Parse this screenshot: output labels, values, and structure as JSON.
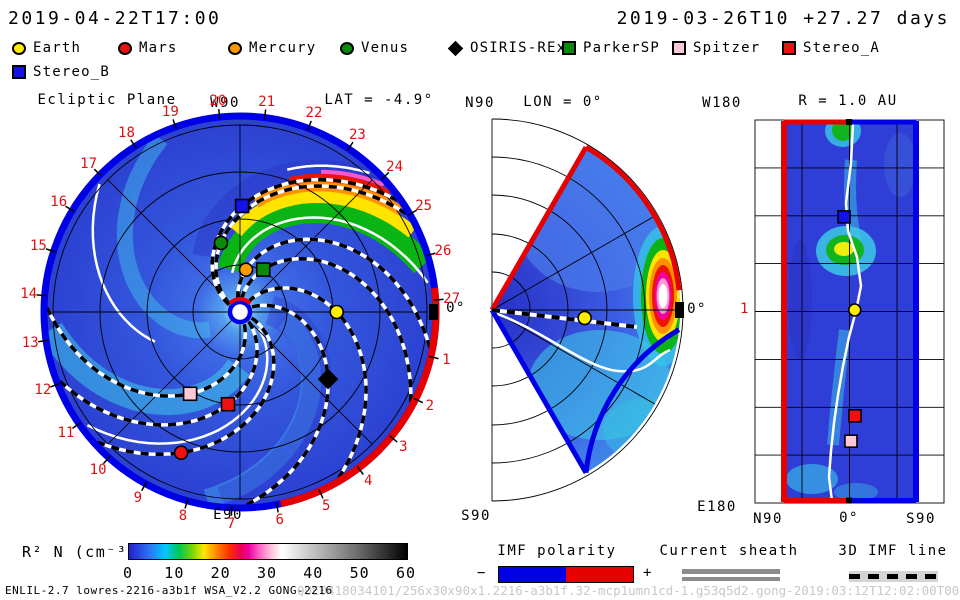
{
  "header": {
    "datetime_current": "2019-04-22T17:00",
    "datetime_start": "2019-03-26T10 +27.27 days"
  },
  "legend": {
    "items": [
      {
        "label": "Earth",
        "shape": "circle",
        "color": "#ffee00"
      },
      {
        "label": "Mars",
        "shape": "circle",
        "color": "#ee1111"
      },
      {
        "label": "Mercury",
        "shape": "circle",
        "color": "#ff9900"
      },
      {
        "label": "Venus",
        "shape": "circle",
        "color": "#0a8a0a"
      },
      {
        "label": "OSIRIS-REx",
        "shape": "diamond",
        "color": "#000000"
      },
      {
        "label": "ParkerSP",
        "shape": "square",
        "color": "#0a8a0a"
      },
      {
        "label": "Spitzer",
        "shape": "square",
        "color": "#ffc8d8"
      },
      {
        "label": "Stereo_A",
        "shape": "square",
        "color": "#ee1111"
      },
      {
        "label": "Stereo_B",
        "shape": "square",
        "color": "#1313e6"
      }
    ]
  },
  "panels": {
    "ecliptic": {
      "title": "Ecliptic Plane",
      "top_label": "W90",
      "bottom_label": "E90",
      "lat_label": "LAT = -4.9°",
      "zero_label": "0°",
      "rotation_period_days": 27.27,
      "day_ticks": [
        1,
        2,
        3,
        4,
        5,
        6,
        7,
        8,
        9,
        10,
        11,
        12,
        13,
        14,
        15,
        16,
        17,
        18,
        19,
        20,
        21,
        22,
        23,
        24,
        25,
        26,
        27
      ]
    },
    "meridional": {
      "north_label": "N90",
      "title": "LON = 0°",
      "south_label": "S90",
      "zero_label": "0°"
    },
    "radial_map": {
      "top_left_label": "W180",
      "title": "R = 1.0 AU",
      "bottom_left_label": "E180",
      "r_tick": "1",
      "x_ticks": [
        "N90",
        "0°",
        "S90"
      ]
    }
  },
  "markers": [
    {
      "name": "Earth",
      "shape": "circle",
      "color": "#ffee00",
      "ecliptic": {
        "angle_deg": 0,
        "r_au": 1.04
      },
      "meridional": {
        "r_au": 1.0,
        "lat_deg": -4.9
      },
      "radial": {
        "lat_deg": -5,
        "lon_deg": 0
      }
    },
    {
      "name": "Mars",
      "shape": "circle",
      "color": "#ee1111",
      "ecliptic": {
        "angle_deg": -112.7,
        "r_au": 1.64
      }
    },
    {
      "name": "Mercury",
      "shape": "circle",
      "color": "#ff9900",
      "ecliptic": {
        "angle_deg": 81.9,
        "r_au": 0.46
      }
    },
    {
      "name": "Venus",
      "shape": "circle",
      "color": "#0a8a0a",
      "ecliptic": {
        "angle_deg": 105.4,
        "r_au": 0.77
      }
    },
    {
      "name": "OSIRIS-REx",
      "shape": "diamond",
      "color": "#000000",
      "ecliptic": {
        "angle_deg": -37.3,
        "r_au": 1.19
      }
    },
    {
      "name": "ParkerSP",
      "shape": "square",
      "color": "#0a8a0a",
      "ecliptic": {
        "angle_deg": 61.3,
        "r_au": 0.52
      }
    },
    {
      "name": "Spitzer",
      "shape": "square",
      "color": "#ffc8d8",
      "ecliptic": {
        "angle_deg": -121.4,
        "r_au": 1.03
      },
      "radial": {
        "lat_deg": -1.4,
        "lon_deg": -124
      }
    },
    {
      "name": "Stereo_A",
      "shape": "square",
      "color": "#ee1111",
      "ecliptic": {
        "angle_deg": -97.4,
        "r_au": 1.0
      },
      "radial": {
        "lat_deg": -5.2,
        "lon_deg": -100
      }
    },
    {
      "name": "Stereo_B",
      "shape": "square",
      "color": "#1313e6",
      "ecliptic": {
        "angle_deg": 88.9,
        "r_au": 1.14
      },
      "radial": {
        "lat_deg": 5.2,
        "lon_deg": 88
      }
    }
  ],
  "colorbar": {
    "label": "R² N (cm⁻³)",
    "ticks": [
      0,
      10,
      20,
      30,
      40,
      50,
      60
    ],
    "stops": [
      {
        "p": 0,
        "c": "#2020cc"
      },
      {
        "p": 7,
        "c": "#2f6ff0"
      },
      {
        "p": 13,
        "c": "#00c8ff"
      },
      {
        "p": 18,
        "c": "#00c850"
      },
      {
        "p": 23,
        "c": "#7fd800"
      },
      {
        "p": 27,
        "c": "#ffe800"
      },
      {
        "p": 31,
        "c": "#ff9000"
      },
      {
        "p": 36,
        "c": "#ff3000"
      },
      {
        "p": 40,
        "c": "#ee0050"
      },
      {
        "p": 43,
        "c": "#f000a0"
      },
      {
        "p": 47,
        "c": "#ff64c8"
      },
      {
        "p": 51,
        "c": "#ffc0dc"
      },
      {
        "p": 55,
        "c": "#ffffff"
      },
      {
        "p": 65,
        "c": "#c8c8c8"
      },
      {
        "p": 82,
        "c": "#6e6e6e"
      },
      {
        "p": 100,
        "c": "#000000"
      }
    ]
  },
  "legends_bottom": {
    "imf": {
      "title": "IMF polarity",
      "minus": "−",
      "plus": "+",
      "neg_color": "#0000e6",
      "pos_color": "#e60000"
    },
    "sheath": {
      "title": "Current sheath"
    },
    "imf_line": {
      "title": "3D IMF line"
    }
  },
  "footer": {
    "model_info": "ENLIL-2.7 lowres-2216-a3b1f WSA_V2.2 GONG-2216",
    "watermark": "QUE0418034101/256x30x90x1.2216-a3b1f.32-mcp1umn1cd-1.g53q5d2.gong-2019:03:12T12:02:00T00   2019-04-18"
  },
  "chart_data": [
    {
      "type": "heatmap",
      "title": "Ecliptic Plane",
      "projection": "polar cut viewed from solar north, Sun at center",
      "quantity": "R² N (cm⁻³)",
      "color_range": [
        0,
        60
      ],
      "radial_extent_au": 2.1,
      "grid_circles_au": [
        0.5,
        1.0,
        1.5,
        2.0
      ],
      "plane_lat_deg": -4.9,
      "angular_ticks": "day-of-rotation labels 1-27 around rim, 27.27-day period, 0° at Earth direction",
      "rim_polarity": {
        "positive_red_arc_deg": [
          -78,
          7
        ],
        "negative_blue_arc": "remainder of rim"
      },
      "features": [
        "Parker-spiral 3D IMF lines (black/white dashed) threading each planet/spacecraft",
        "high-density CME spiral arm colored green→yellow→orange→red reaching the outer boundary near 0°-30°",
        "white solid current-sheet spiral lines",
        "background slow solar wind in blues/cyans (≈2-10 cm⁻³)"
      ]
    },
    {
      "type": "heatmap",
      "title": "Meridional cut LON = 0°",
      "projection": "polar half-plane, N90 at top, S90 at bottom, Sun at apex",
      "data_wedge_lat_deg": [
        -60,
        60
      ],
      "radial_extent_au": 2.1,
      "quantity": "R² N (cm⁻³)",
      "features": [
        "Earth (yellow) at 1 AU just south of equator (LAT -4.9°) with dashed IMF line from Sun",
        "bright CME density front at outer boundary near equator: white core (>35) ringed by pink/magenta/red/yellow/green",
        "white current-sheet line dipping southward of the equator",
        "upper wedge boundary red (+ polarity), lower boundary blue (−)"
      ]
    },
    {
      "type": "heatmap",
      "title": "R = 1.0 AU latitude-longitude map",
      "x_axis": {
        "label": "latitude",
        "ticks": [
          "N90",
          "0°",
          "S90"
        ]
      },
      "y_axis": {
        "label": "longitude",
        "top": "W180",
        "bottom": "E180",
        "equator_tick": "1"
      },
      "quantity": "R² N (cm⁻³)",
      "features": [
        "white current-sheet trace meandering near 0° latitude over full longitude range",
        "enhanced density blobs (green/yellow ≈12-18) near W60-W30 longitudes",
        "left map border red (+ polarity), right border blue (−), black marks at 0° top/bottom",
        "markers: Stereo_B (N5,W88), Earth (S5,0), Stereo_A (S5,E100), Spitzer (S1,E124)"
      ]
    }
  ]
}
